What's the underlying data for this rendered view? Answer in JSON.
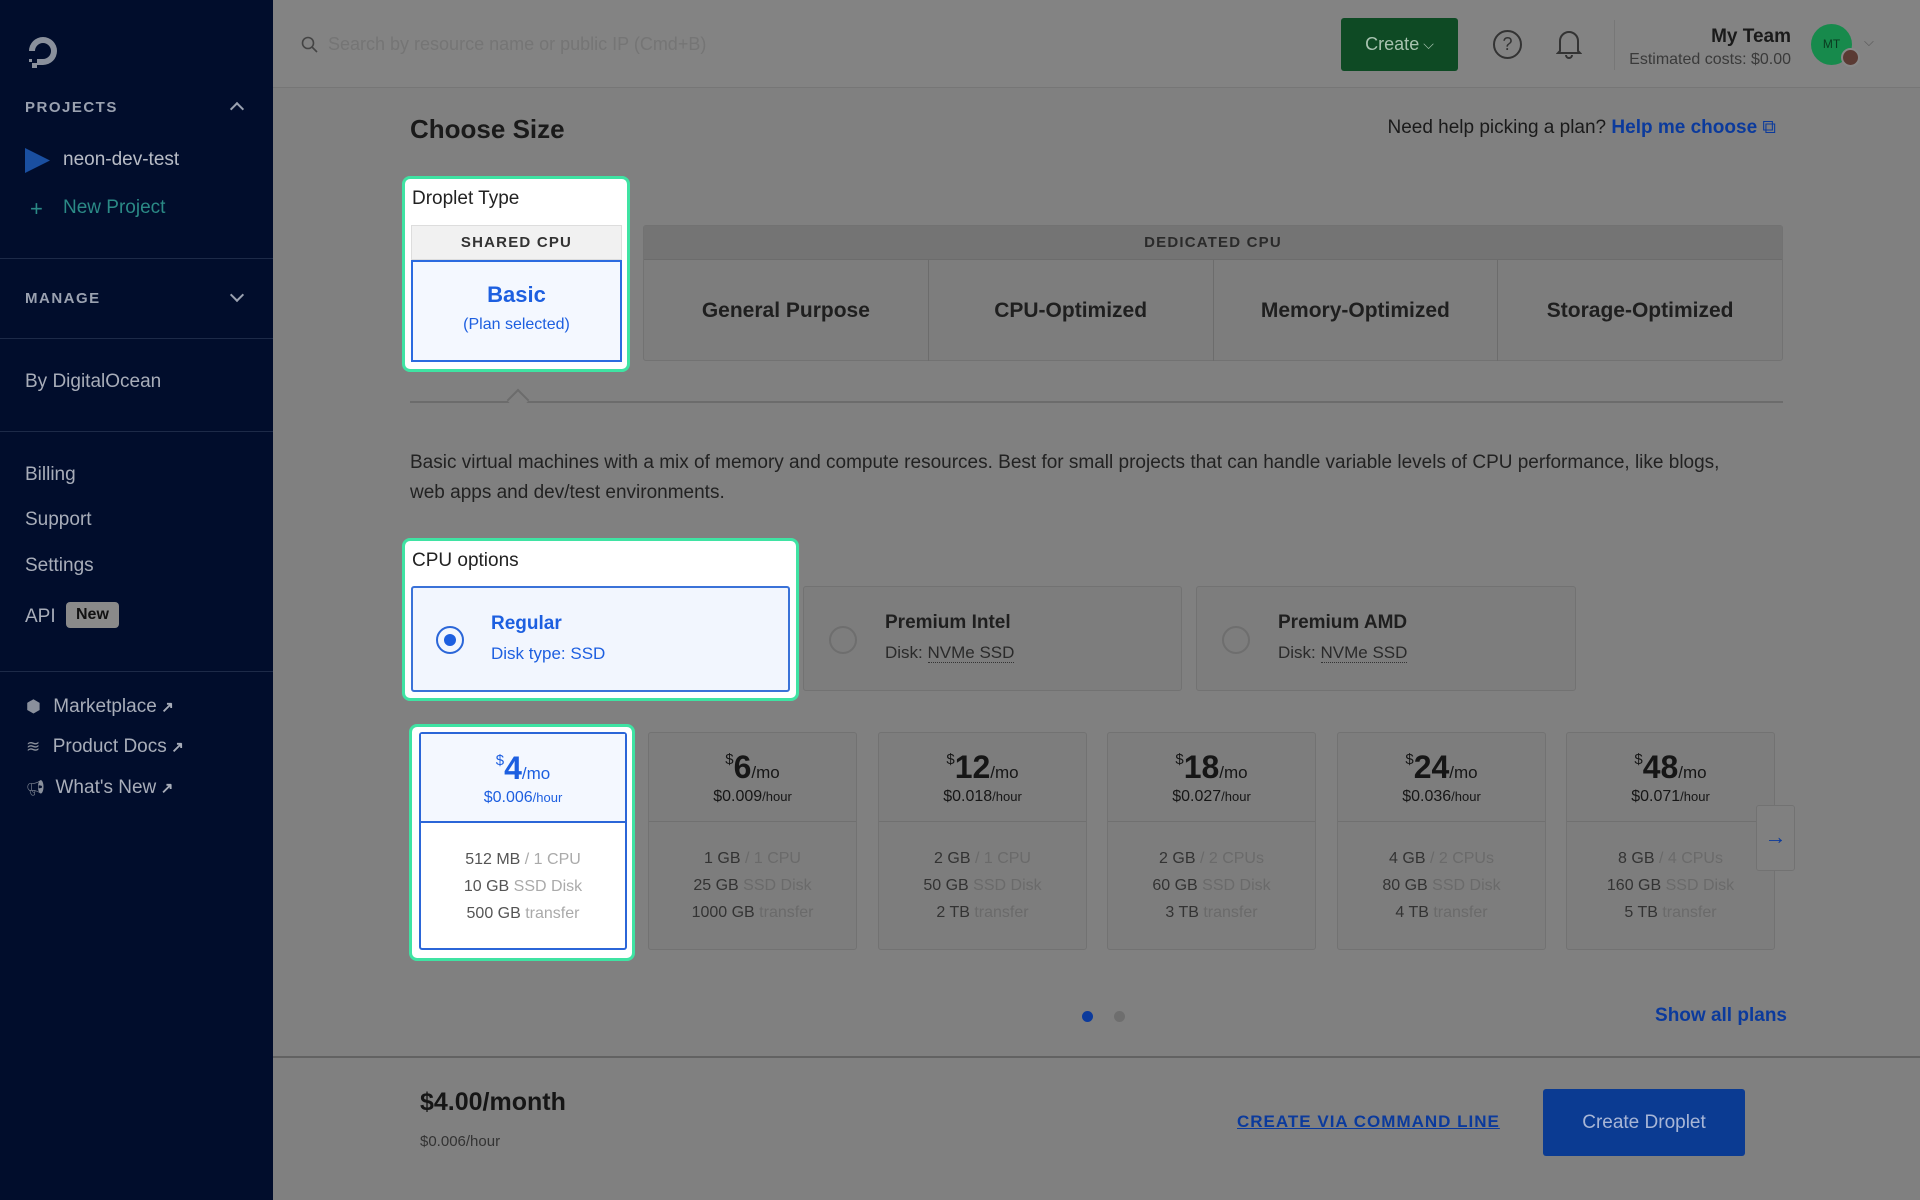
{
  "sidebar": {
    "projects_heading": "PROJECTS",
    "projects": [
      {
        "label": "neon-dev-test"
      }
    ],
    "new_project": "New Project",
    "manage_heading": "MANAGE",
    "by_do": "By DigitalOcean",
    "links": [
      "Billing",
      "Support",
      "Settings"
    ],
    "api": {
      "label": "API",
      "badge": "New"
    },
    "external": [
      {
        "label": "Marketplace",
        "icon": "cube-icon"
      },
      {
        "label": "Product Docs",
        "icon": "layers-icon"
      },
      {
        "label": "What's New",
        "icon": "megaphone-icon"
      }
    ]
  },
  "topbar": {
    "search_placeholder": "Search by resource name or public IP (Cmd+B)",
    "create_label": "Create",
    "team": "My Team",
    "estimated_costs": "Estimated costs: $0.00",
    "avatar_initials": "MT"
  },
  "main": {
    "title": "Choose Size",
    "help_text": "Need help picking a plan?",
    "help_link": "Help me choose",
    "droplet_type_label": "Droplet Type",
    "shared_cpu": "SHARED CPU",
    "basic": "Basic",
    "plan_selected": "(Plan selected)",
    "dedicated_cpu": "DEDICATED CPU",
    "dedicated_options": [
      "General Purpose",
      "CPU-Optimized",
      "Memory-Optimized",
      "Storage-Optimized"
    ],
    "description": "Basic virtual machines with a mix of memory and compute resources. Best for small projects that can handle variable levels of CPU performance, like blogs, web apps and dev/test environments.",
    "cpu_options_label": "CPU options",
    "cpu_options": [
      {
        "name": "Regular",
        "disk_label": "Disk type:",
        "disk": "SSD",
        "selected": true
      },
      {
        "name": "Premium Intel",
        "disk_label": "Disk:",
        "disk": "NVMe SSD",
        "selected": false
      },
      {
        "name": "Premium AMD",
        "disk_label": "Disk:",
        "disk": "NVMe SSD",
        "selected": false
      }
    ],
    "plans": [
      {
        "price": "4",
        "hourly": "$0.006",
        "mem": "512 MB",
        "cpu": "/ 1 CPU",
        "disk": "10 GB",
        "disk_type": "SSD Disk",
        "transfer": "500 GB",
        "transfer_label": "transfer"
      },
      {
        "price": "6",
        "hourly": "$0.009",
        "mem": "1 GB",
        "cpu": "/ 1 CPU",
        "disk": "25 GB",
        "disk_type": "SSD Disk",
        "transfer": "1000 GB",
        "transfer_label": "transfer"
      },
      {
        "price": "12",
        "hourly": "$0.018",
        "mem": "2 GB",
        "cpu": "/ 1 CPU",
        "disk": "50 GB",
        "disk_type": "SSD Disk",
        "transfer": "2 TB",
        "transfer_label": "transfer"
      },
      {
        "price": "18",
        "hourly": "$0.027",
        "mem": "2 GB",
        "cpu": "/ 2 CPUs",
        "disk": "60 GB",
        "disk_type": "SSD Disk",
        "transfer": "3 TB",
        "transfer_label": "transfer"
      },
      {
        "price": "24",
        "hourly": "$0.036",
        "mem": "4 GB",
        "cpu": "/ 2 CPUs",
        "disk": "80 GB",
        "disk_type": "SSD Disk",
        "transfer": "4 TB",
        "transfer_label": "transfer"
      },
      {
        "price": "48",
        "hourly": "$0.071",
        "mem": "8 GB",
        "cpu": "/ 4 CPUs",
        "disk": "160 GB",
        "disk_type": "SSD Disk",
        "transfer": "5 TB",
        "transfer_label": "transfer"
      }
    ],
    "currency": "$",
    "per_month": "/mo",
    "per_hour": "/hour",
    "page_current": 1,
    "page_count": 2,
    "show_all": "Show all plans"
  },
  "footer": {
    "monthly": "$4.00/month",
    "hourly": "$0.006/hour",
    "cli": "CREATE VIA COMMAND LINE",
    "create": "Create Droplet"
  }
}
